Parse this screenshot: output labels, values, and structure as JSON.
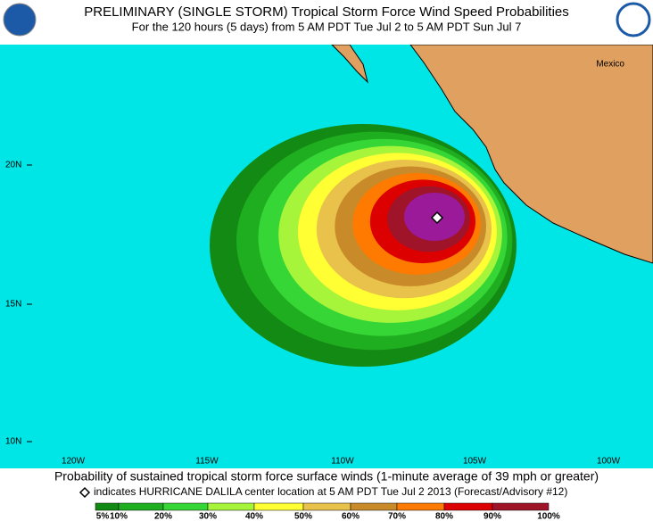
{
  "header": {
    "title": "PRELIMINARY (SINGLE STORM) Tropical Storm Force Wind Speed Probabilities",
    "subtitle": "For the 120 hours (5 days) from 5 AM PDT Tue Jul 2 to 5 AM PDT Sun Jul 7"
  },
  "map": {
    "latitude_labels": [
      "20N",
      "15N",
      "10N"
    ],
    "longitude_labels": [
      "120W",
      "115W",
      "110W",
      "105W",
      "100W"
    ],
    "place_label": "Mexico"
  },
  "caption": "Probability of sustained tropical storm force surface winds (1-minute average of 39 mph or greater)",
  "center_note": "indicates HURRICANE DALILA center location at 5 AM PDT Tue Jul 2 2013 (Forecast/Advisory #12)",
  "legend": {
    "labels": [
      "5%",
      "10%",
      "20%",
      "30%",
      "40%",
      "50%",
      "60%",
      "70%",
      "80%",
      "90%",
      "100%"
    ],
    "colors": [
      "#138a13",
      "#1fae1f",
      "#36d636",
      "#a6f53a",
      "#ffff33",
      "#e8c24a",
      "#c98a2a",
      "#ff7a00",
      "#dd0000",
      "#a0142a",
      "#9a1a9a"
    ]
  }
}
